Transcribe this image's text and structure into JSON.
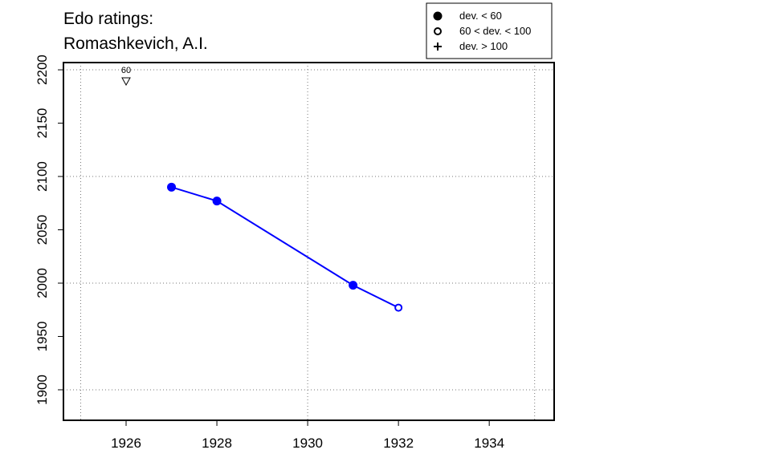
{
  "chart_data": {
    "type": "line",
    "title": "Edo ratings:",
    "subtitle": "Romashkevich, A.I.",
    "x": [
      1927,
      1928,
      1931,
      1932
    ],
    "series": [
      {
        "color": "#0000ff",
        "values": [
          2090,
          2077,
          1998,
          1977
        ],
        "markers": [
          "filled",
          "filled",
          "filled",
          "open"
        ]
      }
    ],
    "xlim": [
      1924.62,
      1935.43
    ],
    "xticks": [
      1926,
      1928,
      1930,
      1932,
      1934
    ],
    "xgrid": [
      1925,
      1930,
      1935
    ],
    "ylim": [
      1871.4,
      2206.8
    ],
    "yticks": [
      1900,
      1950,
      2000,
      2050,
      2100,
      2150,
      2200
    ],
    "ygrid": [
      1900,
      2000,
      2100,
      2200
    ],
    "grid": true,
    "annotations": [
      {
        "x": 1926,
        "label": "60"
      }
    ],
    "legend": {
      "position": "top-right",
      "entries": [
        {
          "marker": "filled",
          "label": "dev. < 60"
        },
        {
          "marker": "open",
          "label": "60 < dev. < 100"
        },
        {
          "marker": "plus",
          "label": "dev. > 100"
        }
      ]
    }
  }
}
